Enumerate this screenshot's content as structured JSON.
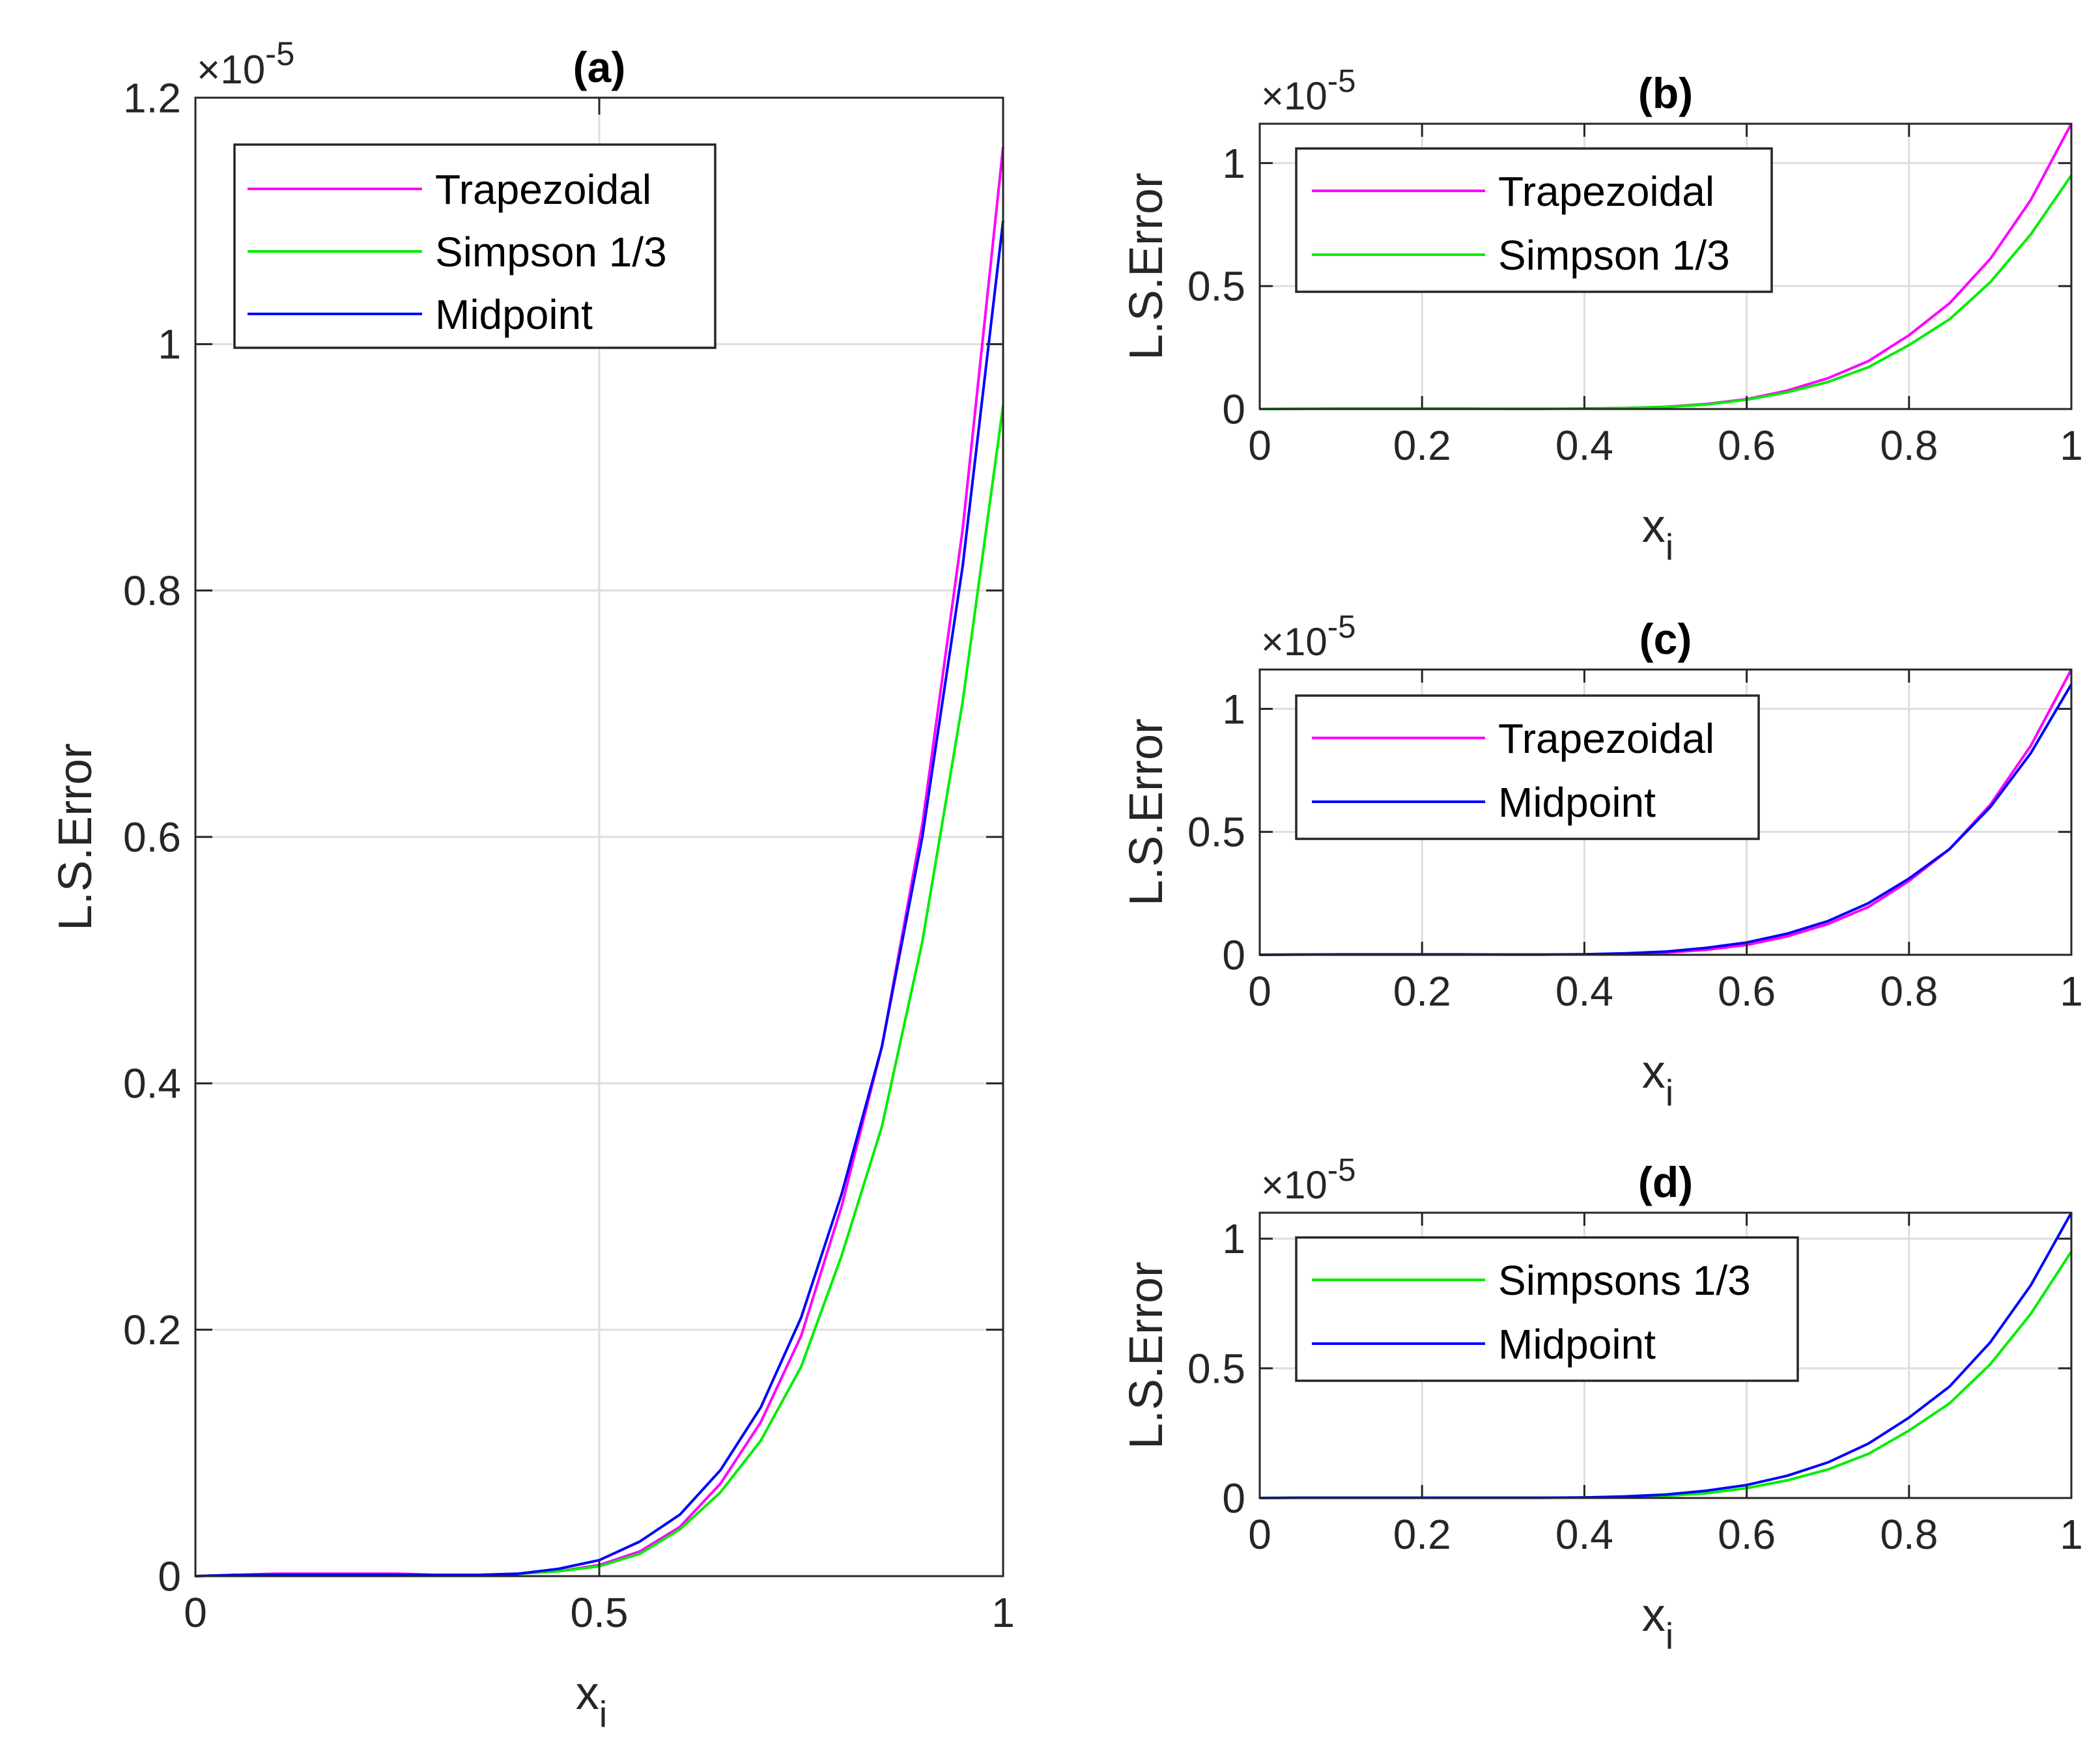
{
  "chart_data": [
    {
      "id": "a",
      "type": "line",
      "title": "(a)",
      "xlabel": "x",
      "xlabel_sub": "i",
      "ylabel": "L.S.Error",
      "exponent_base": "×10",
      "exponent_power": "-5",
      "xlim": [
        0,
        1
      ],
      "ylim": [
        0,
        1.2
      ],
      "xticks": [
        0,
        0.5,
        1
      ],
      "xtick_labels": [
        "0",
        "0.5",
        "1"
      ],
      "yticks": [
        0,
        0.2,
        0.4,
        0.6,
        0.8,
        1,
        1.2
      ],
      "ytick_labels": [
        "0",
        "0.2",
        "0.4",
        "0.6",
        "0.8",
        "1",
        "1.2"
      ],
      "legend": "top-left",
      "x": [
        0,
        0.05,
        0.1,
        0.15,
        0.2,
        0.25,
        0.3,
        0.35,
        0.4,
        0.45,
        0.5,
        0.55,
        0.6,
        0.65,
        0.7,
        0.75,
        0.8,
        0.85,
        0.9,
        0.95,
        1
      ],
      "series": [
        {
          "name": "Trapezoidal",
          "color": "#ff00ff",
          "values": [
            0,
            0.001,
            0.002,
            0.002,
            0.002,
            0.002,
            0.001,
            0.001,
            0.002,
            0.004,
            0.009,
            0.02,
            0.04,
            0.075,
            0.125,
            0.195,
            0.3,
            0.43,
            0.61,
            0.85,
            1.16
          ]
        },
        {
          "name": "Simpson 1/3",
          "color": "#00ee00",
          "values": [
            0,
            0.001,
            0.001,
            0.001,
            0.001,
            0.001,
            0.001,
            0.001,
            0.002,
            0.004,
            0.008,
            0.018,
            0.038,
            0.068,
            0.11,
            0.17,
            0.26,
            0.365,
            0.515,
            0.71,
            0.95
          ]
        },
        {
          "name": "Midpoint",
          "color": "#0000ff",
          "values": [
            0,
            0.001,
            0.001,
            0.001,
            0.001,
            0.001,
            0.001,
            0.001,
            0.002,
            0.006,
            0.013,
            0.028,
            0.05,
            0.086,
            0.137,
            0.21,
            0.31,
            0.43,
            0.6,
            0.82,
            1.1
          ]
        }
      ]
    },
    {
      "id": "b",
      "type": "line",
      "title": "(b)",
      "xlabel": "x",
      "xlabel_sub": "i",
      "ylabel": "L.S.Error",
      "exponent_base": "×10",
      "exponent_power": "-5",
      "xlim": [
        0,
        1
      ],
      "ylim": [
        0,
        1.16
      ],
      "xticks": [
        0,
        0.2,
        0.4,
        0.6,
        0.8,
        1
      ],
      "xtick_labels": [
        "0",
        "0.2",
        "0.4",
        "0.6",
        "0.8",
        "1"
      ],
      "yticks": [
        0,
        0.5,
        1
      ],
      "ytick_labels": [
        "0",
        "0.5",
        "1"
      ],
      "legend": "top-left",
      "x": [
        0,
        0.05,
        0.1,
        0.15,
        0.2,
        0.25,
        0.3,
        0.35,
        0.4,
        0.45,
        0.5,
        0.55,
        0.6,
        0.65,
        0.7,
        0.75,
        0.8,
        0.85,
        0.9,
        0.95,
        1
      ],
      "series": [
        {
          "name": "Trapezoidal",
          "color": "#ff00ff",
          "values": [
            0,
            0.001,
            0.002,
            0.002,
            0.002,
            0.002,
            0.001,
            0.001,
            0.002,
            0.004,
            0.009,
            0.02,
            0.04,
            0.075,
            0.125,
            0.195,
            0.3,
            0.43,
            0.61,
            0.85,
            1.16
          ]
        },
        {
          "name": "Simpson 1/3",
          "color": "#00ee00",
          "values": [
            0,
            0.001,
            0.001,
            0.001,
            0.001,
            0.001,
            0.001,
            0.001,
            0.002,
            0.004,
            0.008,
            0.018,
            0.038,
            0.068,
            0.11,
            0.17,
            0.26,
            0.365,
            0.515,
            0.71,
            0.95
          ]
        }
      ]
    },
    {
      "id": "c",
      "type": "line",
      "title": "(c)",
      "xlabel": "x",
      "xlabel_sub": "i",
      "ylabel": "L.S.Error",
      "exponent_base": "×10",
      "exponent_power": "-5",
      "xlim": [
        0,
        1
      ],
      "ylim": [
        0,
        1.16
      ],
      "xticks": [
        0,
        0.2,
        0.4,
        0.6,
        0.8,
        1
      ],
      "xtick_labels": [
        "0",
        "0.2",
        "0.4",
        "0.6",
        "0.8",
        "1"
      ],
      "yticks": [
        0,
        0.5,
        1
      ],
      "ytick_labels": [
        "0",
        "0.5",
        "1"
      ],
      "legend": "top-left",
      "x": [
        0,
        0.05,
        0.1,
        0.15,
        0.2,
        0.25,
        0.3,
        0.35,
        0.4,
        0.45,
        0.5,
        0.55,
        0.6,
        0.65,
        0.7,
        0.75,
        0.8,
        0.85,
        0.9,
        0.95,
        1
      ],
      "series": [
        {
          "name": "Trapezoidal",
          "color": "#ff00ff",
          "values": [
            0,
            0.001,
            0.002,
            0.002,
            0.002,
            0.002,
            0.001,
            0.001,
            0.002,
            0.004,
            0.009,
            0.02,
            0.04,
            0.075,
            0.125,
            0.195,
            0.3,
            0.43,
            0.61,
            0.85,
            1.16
          ]
        },
        {
          "name": "Midpoint",
          "color": "#0000ff",
          "values": [
            0,
            0.001,
            0.001,
            0.001,
            0.001,
            0.001,
            0.001,
            0.001,
            0.002,
            0.006,
            0.013,
            0.028,
            0.05,
            0.086,
            0.137,
            0.21,
            0.31,
            0.43,
            0.6,
            0.82,
            1.1
          ]
        }
      ]
    },
    {
      "id": "d",
      "type": "line",
      "title": "(d)",
      "xlabel": "x",
      "xlabel_sub": "i",
      "ylabel": "L.S.Error",
      "exponent_base": "×10",
      "exponent_power": "-5",
      "xlim": [
        0,
        1
      ],
      "ylim": [
        0,
        1.1
      ],
      "xticks": [
        0,
        0.2,
        0.4,
        0.6,
        0.8,
        1
      ],
      "xtick_labels": [
        "0",
        "0.2",
        "0.4",
        "0.6",
        "0.8",
        "1"
      ],
      "yticks": [
        0,
        0.5,
        1
      ],
      "ytick_labels": [
        "0",
        "0.5",
        "1"
      ],
      "legend": "top-left",
      "x": [
        0,
        0.05,
        0.1,
        0.15,
        0.2,
        0.25,
        0.3,
        0.35,
        0.4,
        0.45,
        0.5,
        0.55,
        0.6,
        0.65,
        0.7,
        0.75,
        0.8,
        0.85,
        0.9,
        0.95,
        1
      ],
      "series": [
        {
          "name": "Simpsons 1/3",
          "color": "#00ee00",
          "values": [
            0,
            0.001,
            0.001,
            0.001,
            0.001,
            0.001,
            0.001,
            0.001,
            0.002,
            0.004,
            0.008,
            0.018,
            0.038,
            0.068,
            0.11,
            0.17,
            0.26,
            0.365,
            0.515,
            0.71,
            0.95
          ]
        },
        {
          "name": "Midpoint",
          "color": "#0000ff",
          "values": [
            0,
            0.001,
            0.001,
            0.001,
            0.001,
            0.001,
            0.001,
            0.001,
            0.002,
            0.006,
            0.013,
            0.028,
            0.05,
            0.086,
            0.137,
            0.21,
            0.31,
            0.43,
            0.6,
            0.82,
            1.1
          ]
        }
      ]
    }
  ]
}
